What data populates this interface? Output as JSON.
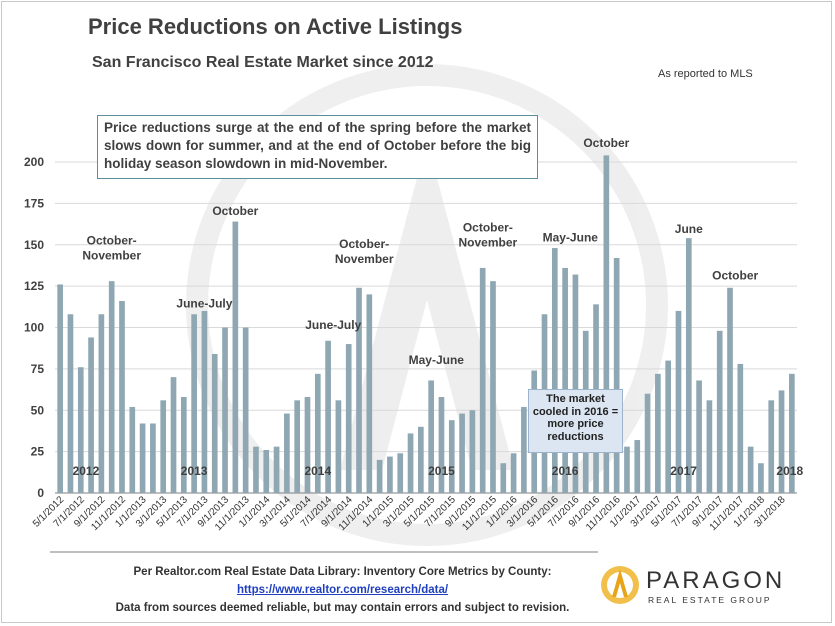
{
  "title": "Price Reductions on Active Listings",
  "subtitle": "San Francisco Real Estate Market since 2012",
  "reported": "As reported to MLS",
  "callout": "Price reductions surge at the end of the spring before the market slows down for summer, and at the end of October before the big holiday season slowdown in mid-November.",
  "note": "The market cooled in 2016 = more price reductions",
  "source": {
    "line1": "Per Realtor.com Real Estate Data Library: Inventory Core Metrics by County:",
    "link": "https://www.realtor.com/research/data/",
    "line3": "Data from sources deemed reliable, but may contain errors and subject to revision."
  },
  "logo": {
    "name": "PARAGON",
    "tagline": "REAL ESTATE GROUP"
  },
  "colors": {
    "bar": "#8ea7b2",
    "text": "#404040",
    "grid": "#d9d9d9",
    "logo_gold": "#e8a317"
  },
  "chart_data": {
    "type": "bar",
    "title": "Price Reductions on Active Listings",
    "ylim": [
      0,
      200
    ],
    "yticks": [
      0,
      25,
      50,
      75,
      100,
      125,
      150,
      175,
      200
    ],
    "grid": true,
    "values": [
      126,
      108,
      76,
      94,
      108,
      128,
      116,
      52,
      42,
      42,
      56,
      70,
      58,
      108,
      110,
      84,
      100,
      164,
      100,
      28,
      26,
      28,
      48,
      56,
      58,
      72,
      92,
      56,
      90,
      124,
      120,
      20,
      22,
      24,
      36,
      40,
      68,
      58,
      44,
      48,
      50,
      136,
      128,
      18,
      24,
      52,
      74,
      108,
      148,
      136,
      132,
      98,
      114,
      204,
      142,
      28,
      32,
      60,
      72,
      80,
      110,
      154,
      68,
      56,
      98,
      124,
      78,
      28,
      18,
      56,
      62,
      72
    ],
    "x_labels": [
      "5/1/2012",
      "7/1/2012",
      "9/1/2012",
      "11/1/2012",
      "1/1/2013",
      "3/1/2013",
      "5/1/2013",
      "7/1/2013",
      "9/1/2013",
      "11/1/2013",
      "1/1/2014",
      "3/1/2014",
      "5/1/2014",
      "7/1/2014",
      "9/1/2014",
      "11/1/2014",
      "1/1/2015",
      "3/1/2015",
      "5/1/2015",
      "7/1/2015",
      "9/1/2015",
      "11/1/2015",
      "1/1/2016",
      "3/1/2016",
      "5/1/2016",
      "7/1/2016",
      "9/1/2016",
      "11/1/2016",
      "1/1/2017",
      "3/1/2017",
      "5/1/2017",
      "7/1/2017",
      "9/1/2017",
      "11/1/2017",
      "1/1/2018",
      "3/1/2018"
    ],
    "year_labels": [
      {
        "text": "2012",
        "bar": 2.5
      },
      {
        "text": "2013",
        "bar": 13
      },
      {
        "text": "2014",
        "bar": 25
      },
      {
        "text": "2015",
        "bar": 37
      },
      {
        "text": "2016",
        "bar": 49
      },
      {
        "text": "2017",
        "bar": 60.5
      },
      {
        "text": "2018",
        "bar": 70.8
      }
    ],
    "annotations": [
      {
        "lines": [
          "October-",
          "November"
        ],
        "bar": 5,
        "value": 141
      },
      {
        "lines": [
          "June-July"
        ],
        "bar": 14,
        "value": 112
      },
      {
        "lines": [
          "October"
        ],
        "bar": 17,
        "value": 168
      },
      {
        "lines": [
          "June-July"
        ],
        "bar": 26.5,
        "value": 99
      },
      {
        "lines": [
          "October-",
          "November"
        ],
        "bar": 29.5,
        "value": 139
      },
      {
        "lines": [
          "May-June"
        ],
        "bar": 36.5,
        "value": 78
      },
      {
        "lines": [
          "October-",
          "November"
        ],
        "bar": 41.5,
        "value": 149
      },
      {
        "lines": [
          "May-June"
        ],
        "bar": 49.5,
        "value": 152
      },
      {
        "lines": [
          "October"
        ],
        "bar": 53,
        "value": 209
      },
      {
        "lines": [
          "June"
        ],
        "bar": 61,
        "value": 157
      },
      {
        "lines": [
          "October"
        ],
        "bar": 65.5,
        "value": 129
      }
    ]
  }
}
